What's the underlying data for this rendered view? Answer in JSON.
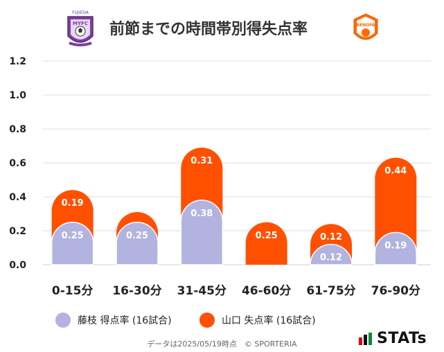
{
  "header": {
    "title": "前節までの時間帯別得失点率",
    "left_logo_text": "FUJIEDA",
    "left_logo_mid": "MYFC",
    "right_logo_text": "RENOFA"
  },
  "legend": {
    "fujieda": "藤枝 得点率 (16試合)",
    "yamaguchi": "山口 失点率 (16試合)"
  },
  "footer": {
    "note": "データは2025/05/19時点　© SPORTERIA",
    "brand": "STATs"
  },
  "colors": {
    "fujieda": "#b3b3e0",
    "yamaguchi": "#ff5000",
    "grid": "#dddddd"
  },
  "chart_data": {
    "type": "bar",
    "stacked": true,
    "title": "前節までの時間帯別得失点率",
    "categories": [
      "0-15分",
      "16-30分",
      "31-45分",
      "46-60分",
      "61-75分",
      "76-90分"
    ],
    "series": [
      {
        "name": "藤枝 得点率 (16試合)",
        "values": [
          0.25,
          0.25,
          0.38,
          0,
          0.12,
          0.19
        ],
        "labels": [
          "0.25",
          "0.25",
          "0.38",
          "",
          "0.12",
          "0.19"
        ]
      },
      {
        "name": "山口 失点率 (16試合)",
        "values": [
          0.19,
          0.06,
          0.31,
          0.25,
          0.12,
          0.44
        ],
        "labels": [
          "0.19",
          "",
          "0.31",
          "0.25",
          "0.12",
          "0.44"
        ]
      }
    ],
    "ylim": [
      0,
      1.2
    ],
    "yticks": [
      "0.0",
      "0.2",
      "0.4",
      "0.6",
      "0.8",
      "1.0",
      "1.2"
    ],
    "ytick_values": [
      0,
      0.2,
      0.4,
      0.6,
      0.8,
      1.0,
      1.2
    ],
    "grid": true,
    "xlabel": "",
    "ylabel": ""
  }
}
